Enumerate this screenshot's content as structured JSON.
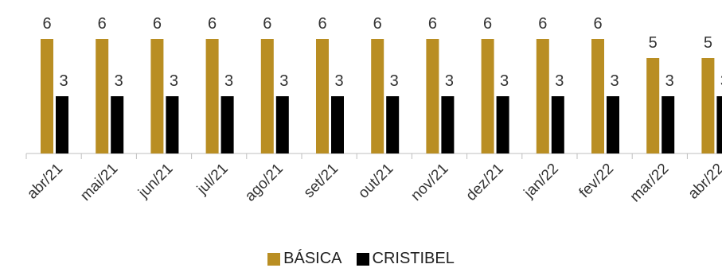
{
  "chart_data": {
    "type": "bar",
    "categories": [
      "abr/21",
      "mai/21",
      "jun/21",
      "jul/21",
      "ago/21",
      "set/21",
      "out/21",
      "nov/21",
      "dez/21",
      "jan/22",
      "fev/22",
      "mar/22",
      "abr/22"
    ],
    "series": [
      {
        "name": "BÁSICA",
        "color": "#B98E23",
        "values": [
          6,
          6,
          6,
          6,
          6,
          6,
          6,
          6,
          6,
          6,
          6,
          5,
          5
        ]
      },
      {
        "name": "CRISTIBEL",
        "color": "#000000",
        "values": [
          3,
          3,
          3,
          3,
          3,
          3,
          3,
          3,
          3,
          3,
          3,
          3,
          3
        ]
      }
    ],
    "data_labels": true,
    "y_axis_visible": false,
    "gridlines": false,
    "legend_position": "bottom",
    "xlabel": "",
    "ylabel": ""
  }
}
